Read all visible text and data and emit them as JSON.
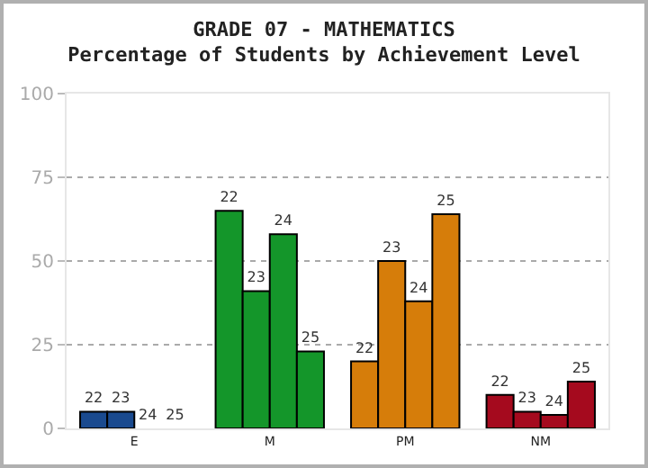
{
  "chart_data": {
    "type": "bar",
    "title": "GRADE 07 - MATHEMATICS",
    "subtitle": "Percentage of Students by Achievement Level",
    "categories": [
      "E",
      "M",
      "PM",
      "NM"
    ],
    "series": [
      {
        "name": "22",
        "values": [
          5,
          65,
          20,
          10
        ],
        "colors": [
          "#1a4a8f",
          "#14962a",
          "#d67d0a",
          "#a50a1e"
        ]
      },
      {
        "name": "23",
        "values": [
          5,
          41,
          50,
          5
        ],
        "colors": [
          "#1a4a8f",
          "#14962a",
          "#d67d0a",
          "#a50a1e"
        ]
      },
      {
        "name": "24",
        "values": [
          0,
          58,
          38,
          4
        ],
        "colors": [
          "#1a4a8f",
          "#14962a",
          "#d67d0a",
          "#a50a1e"
        ]
      },
      {
        "name": "25",
        "values": [
          0,
          23,
          64,
          14
        ],
        "colors": [
          "#1a4a8f",
          "#14962a",
          "#d67d0a",
          "#a50a1e"
        ]
      }
    ],
    "ylim": [
      0,
      100
    ],
    "yticks": [
      0,
      25,
      50,
      75,
      100
    ],
    "grid": "y",
    "legend": false
  }
}
